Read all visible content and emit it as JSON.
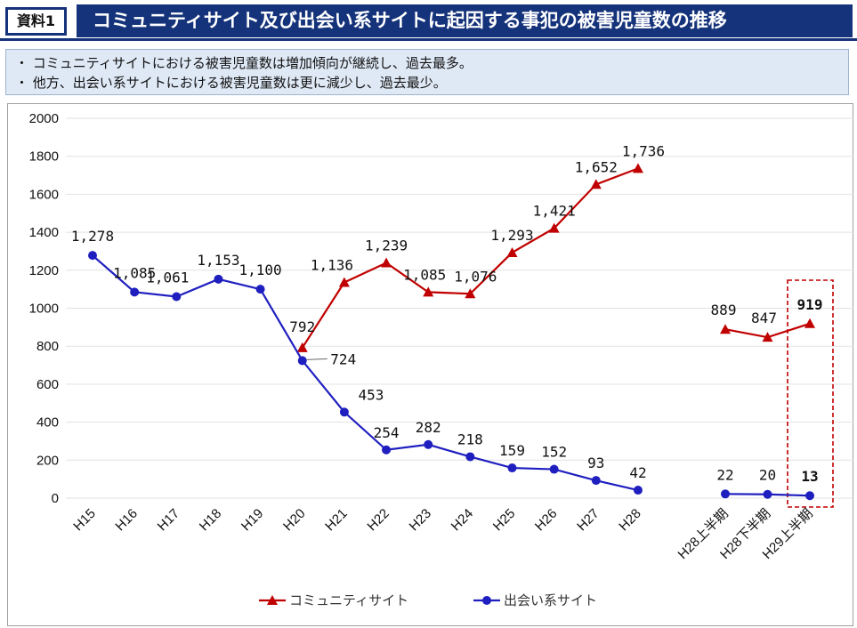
{
  "header": {
    "badge": "資料1",
    "title": "コミュニティサイト及び出会い系サイトに起因する事犯の被害児童数の推移"
  },
  "notes": [
    "・ コミュニティサイトにおける被害児童数は増加傾向が継続し、過去最多。",
    "・ 他方、出会い系サイトにおける被害児童数は更に減少し、過去最少。"
  ],
  "colors": {
    "community": "#c00000",
    "deai": "#1f1fc0",
    "highlight_red": "#c00000",
    "highlight_cyan": "#1fa6d8",
    "frame": "#15337a"
  },
  "chart_data": {
    "type": "line",
    "ylim": [
      0,
      2000
    ],
    "yticks": [
      "0",
      "200",
      "400",
      "600",
      "800",
      "1000",
      "1200",
      "1400",
      "1600",
      "1800",
      "2000"
    ],
    "categories": [
      "H15",
      "H16",
      "H17",
      "H18",
      "H19",
      "H20",
      "H21",
      "H22",
      "H23",
      "H24",
      "H25",
      "H26",
      "H27",
      "H28",
      "H28上半期",
      "H28下半期",
      "H29上半期"
    ],
    "series": [
      {
        "name": "コミュニティサイト",
        "marker": "triangle",
        "segments": [
          {
            "start_index": 5,
            "values": [
              792,
              1136,
              1239,
              1085,
              1076,
              1293,
              1421,
              1652,
              1736
            ],
            "labels": [
              "792",
              "1,136",
              "1,239",
              "1,085",
              "1,076",
              "1,293",
              "1,421",
              "1,652",
              "1,736"
            ]
          },
          {
            "start_index": 14,
            "values": [
              889,
              847,
              919
            ],
            "labels": [
              "889",
              "847",
              "919"
            ]
          }
        ]
      },
      {
        "name": "出会い系サイト",
        "marker": "circle",
        "segments": [
          {
            "start_index": 0,
            "values": [
              1278,
              1085,
              1061,
              1153,
              1100,
              724,
              453,
              254,
              282,
              218,
              159,
              152,
              93,
              42
            ],
            "labels": [
              "1,278",
              "1,085",
              "1,061",
              "1,153",
              "1,100",
              "724",
              "453",
              "254",
              "282",
              "218",
              "159",
              "152",
              "93",
              "42"
            ]
          },
          {
            "start_index": 14,
            "values": [
              22,
              20,
              13
            ],
            "labels": [
              "22",
              "20",
              "13"
            ]
          }
        ]
      }
    ],
    "highlight_category": "H29上半期",
    "grid": true,
    "legend_position": "bottom"
  }
}
